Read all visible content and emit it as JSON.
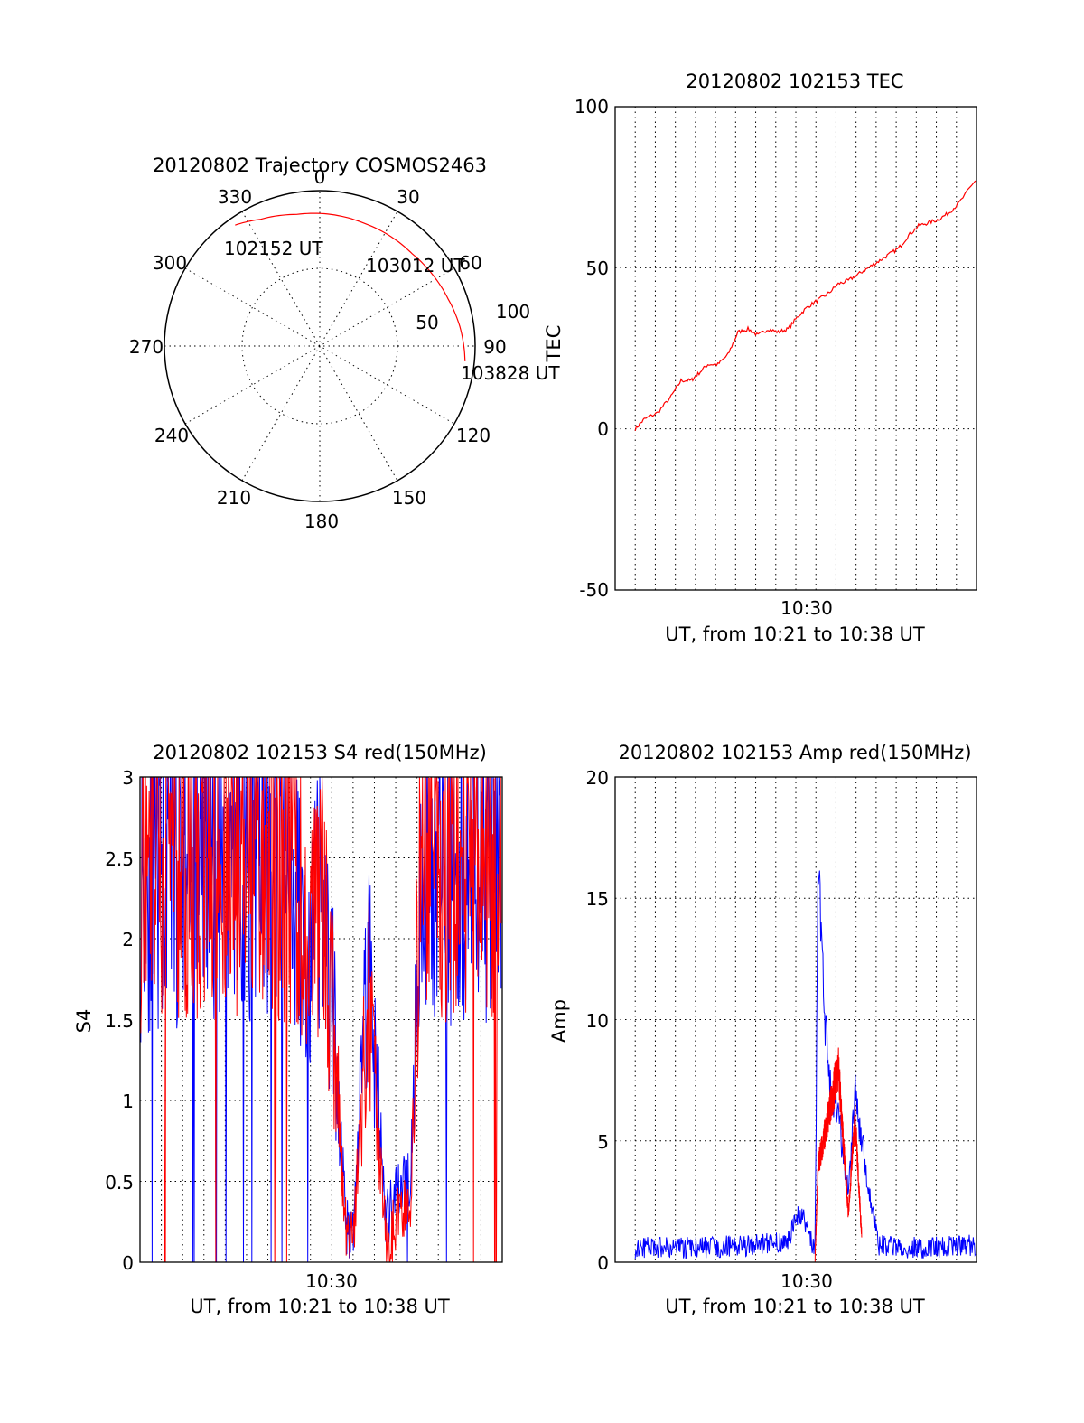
{
  "colors": {
    "red": "#ff0000",
    "blue": "#0000ff",
    "axis": "#000000",
    "background": "#ffffff"
  },
  "polar": {
    "title": "20120802 Trajectory COSMOS2463",
    "azimuth_labels": [
      "0",
      "30",
      "60",
      "90",
      "120",
      "150",
      "180",
      "210",
      "240",
      "270",
      "300",
      "330"
    ],
    "radius_labels": [
      "50",
      "100"
    ],
    "annotations": [
      "102152 UT",
      "103012 UT",
      "103828 UT"
    ]
  },
  "chart_data": [
    {
      "type": "polar",
      "title": "20120802 Trajectory COSMOS2463",
      "description_units": "azimuth degrees (0 = top, clockwise), radial axis from 0 at center to 100 at rim",
      "series": [
        {
          "color": "#ff0000",
          "points": [
            {
              "az": 325,
              "r": 95
            },
            {
              "az": 335,
              "r": 90
            },
            {
              "az": 350,
              "r": 86
            },
            {
              "az": 5,
              "r": 85
            },
            {
              "az": 20,
              "r": 84
            },
            {
              "az": 32,
              "r": 84
            },
            {
              "az": 45,
              "r": 84
            },
            {
              "az": 58,
              "r": 86
            },
            {
              "az": 70,
              "r": 88
            },
            {
              "az": 82,
              "r": 91
            },
            {
              "az": 96,
              "r": 94
            }
          ]
        }
      ],
      "annotations": [
        "102152 UT",
        "103012 UT",
        "103828 UT"
      ]
    },
    {
      "type": "line",
      "title": "20120802 102153 TEC",
      "xlabel": "UT, from 10:21 to 10:38 UT",
      "ylabel": "TEC",
      "x_tick_labels": [
        "10:30"
      ],
      "y_tick_labels": [
        "100",
        "50",
        "0",
        "-50"
      ],
      "xlim": [
        "10:20:53",
        "10:38:53"
      ],
      "ylim": [
        -50,
        100
      ],
      "series": [
        {
          "color": "#ff0000",
          "x": [
            "10:21:53",
            "10:22:20",
            "10:23:00",
            "10:23:40",
            "10:24:10",
            "10:24:40",
            "10:25:00",
            "10:25:30",
            "10:26:00",
            "10:26:30",
            "10:27:00",
            "10:27:30",
            "10:28:00",
            "10:28:30",
            "10:29:00",
            "10:29:30",
            "10:30:00",
            "10:30:30",
            "10:31:00",
            "10:31:30",
            "10:32:00",
            "10:32:30",
            "10:33:00",
            "10:33:30",
            "10:34:00",
            "10:34:30",
            "10:35:00",
            "10:35:30",
            "10:36:00",
            "10:36:30",
            "10:37:00",
            "10:37:30",
            "10:38:00",
            "10:38:50"
          ],
          "y": [
            0,
            3,
            5,
            10,
            15,
            15,
            17,
            20,
            20,
            23,
            30,
            31,
            29,
            31,
            30,
            31,
            35,
            38,
            40,
            42,
            45,
            46,
            48,
            50,
            52,
            54,
            56,
            60,
            63,
            64,
            65,
            67,
            70,
            77
          ]
        }
      ]
    },
    {
      "type": "line",
      "title": "20120802 102153 S4 red(150MHz)",
      "xlabel": "UT, from 10:21 to 10:38 UT",
      "ylabel": "S4",
      "x_tick_labels": [
        "10:30"
      ],
      "y_tick_labels": [
        "3",
        "2.5",
        "2",
        "1.5",
        "1",
        "0.5",
        "0"
      ],
      "xlim": [
        "10:21:48",
        "10:38:48"
      ],
      "ylim": [
        0,
        3
      ],
      "series": [
        {
          "name": "",
          "color": "#0000ff",
          "x": [
            "10:21:50",
            "10:23:00",
            "10:24:00",
            "10:25:00",
            "10:26:00",
            "10:27:00",
            "10:28:00",
            "10:29:00",
            "10:29:40",
            "10:30:10",
            "10:30:50",
            "10:31:30",
            "10:31:50",
            "10:32:30",
            "10:33:20",
            "10:34:00",
            "10:34:30",
            "10:35:00",
            "10:36:00",
            "10:37:00",
            "10:38:00",
            "10:38:45"
          ],
          "y": [
            2.4,
            2.6,
            2.5,
            2.6,
            2.55,
            2.6,
            2.6,
            2.5,
            1.6,
            2.3,
            1.6,
            0.2,
            0.25,
            2.0,
            0.25,
            0.45,
            0.6,
            2.6,
            2.5,
            2.6,
            2.5,
            2.5
          ]
        },
        {
          "name": "",
          "color": "#ff0000",
          "x": [
            "10:21:50",
            "10:23:00",
            "10:24:00",
            "10:25:00",
            "10:26:00",
            "10:27:00",
            "10:28:00",
            "10:29:00",
            "10:29:40",
            "10:30:10",
            "10:30:50",
            "10:31:30",
            "10:31:50",
            "10:32:30",
            "10:33:20",
            "10:34:00",
            "10:34:30",
            "10:35:00",
            "10:36:00",
            "10:37:00",
            "10:38:00",
            "10:38:45"
          ],
          "y": [
            2.5,
            2.7,
            2.6,
            2.7,
            2.6,
            2.7,
            2.6,
            2.6,
            1.7,
            2.4,
            1.5,
            0.15,
            0.15,
            1.7,
            0.12,
            0.3,
            0.4,
            2.7,
            2.6,
            2.7,
            2.6,
            2.6
          ]
        }
      ]
    },
    {
      "type": "line",
      "title": "20120802 102153 Amp red(150MHz)",
      "xlabel": "UT, from 10:21 to 10:38 UT",
      "ylabel": "Amp",
      "x_tick_labels": [
        "10:30"
      ],
      "y_tick_labels": [
        "20",
        "15",
        "10",
        "5",
        "0"
      ],
      "xlim": [
        "10:20:53",
        "10:38:53"
      ],
      "ylim": [
        0,
        20
      ],
      "series": [
        {
          "name": "",
          "color": "#0000ff",
          "x": [
            "10:21:53",
            "10:25:00",
            "10:28:00",
            "10:29:30",
            "10:30:00",
            "10:30:30",
            "10:30:50",
            "10:31:00",
            "10:31:10",
            "10:31:30",
            "10:32:00",
            "10:32:30",
            "10:32:50",
            "10:33:10",
            "10:33:30",
            "10:34:00",
            "10:35:00",
            "10:36:00",
            "10:38:50"
          ],
          "y": [
            0.6,
            0.6,
            0.7,
            0.9,
            2.0,
            1.5,
            0.3,
            16,
            12,
            8,
            6,
            3,
            7,
            5,
            3,
            0.7,
            0.6,
            0.6,
            0.7
          ]
        },
        {
          "name": "",
          "color": "#ff0000",
          "x": [
            "10:30:50",
            "10:31:00",
            "10:31:30",
            "10:32:00",
            "10:32:30",
            "10:32:50",
            "10:33:10"
          ],
          "y": [
            0,
            4,
            6,
            8,
            2,
            6,
            1
          ]
        }
      ]
    }
  ],
  "panels": {
    "tec": {
      "title": "20120802 102153 TEC",
      "xlabel": "UT, from 10:21 to 10:38 UT",
      "ylabel": "TEC",
      "xtick": "10:30",
      "yticks": [
        "100",
        "50",
        "0",
        "-50"
      ]
    },
    "s4": {
      "title": "20120802 102153 S4 red(150MHz)",
      "xlabel": "UT, from 10:21 to 10:38 UT",
      "ylabel": "S4",
      "xtick": "10:30",
      "yticks": [
        "3",
        "2.5",
        "2",
        "1.5",
        "1",
        "0.5",
        "0"
      ]
    },
    "amp": {
      "title": "20120802 102153 Amp red(150MHz)",
      "xlabel": "UT, from 10:21 to 10:38 UT",
      "ylabel": "Amp",
      "xtick": "10:30",
      "yticks": [
        "20",
        "15",
        "10",
        "5",
        "0"
      ]
    }
  }
}
